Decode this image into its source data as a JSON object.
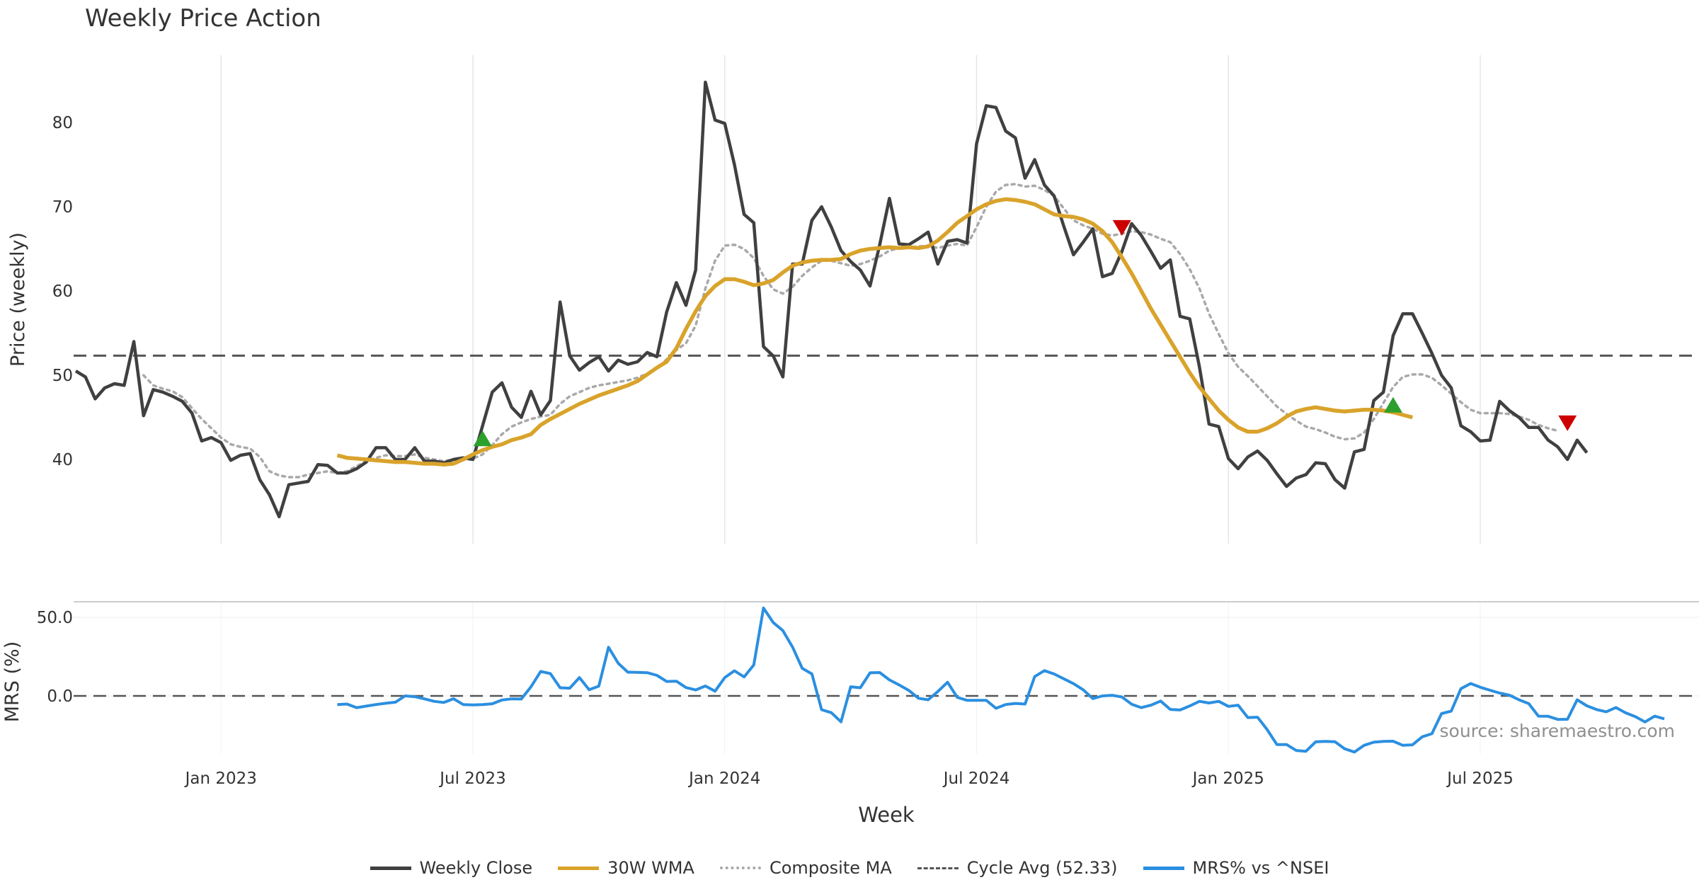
{
  "chart_data": {
    "type": "line",
    "title": "Weekly Price Action",
    "xlabel": "Week",
    "source": "source: sharemaestro.com",
    "x_ticks": [
      "Jan 2023",
      "Jul 2023",
      "Jan 2024",
      "Jul 2024",
      "Jan 2025",
      "Jul 2025"
    ],
    "upper": {
      "ylabel": "Price (weekly)",
      "ylim": [
        30,
        88
      ],
      "y_ticks": [
        "40",
        "50",
        "60",
        "70",
        "80"
      ],
      "cycle_avg": 52.33,
      "weekly_close": [
        50.5,
        49.8,
        47.2,
        48.5,
        49.0,
        48.8,
        54.0,
        45.2,
        48.3,
        48.0,
        47.5,
        46.9,
        45.5,
        42.2,
        42.6,
        42.0,
        39.9,
        40.5,
        40.7,
        37.6,
        35.8,
        33.2,
        37.0,
        37.2,
        37.4,
        39.4,
        39.3,
        38.4,
        38.4,
        38.9,
        39.7,
        41.4,
        41.4,
        40.0,
        40.0,
        41.4,
        39.8,
        39.8,
        39.6,
        40.0,
        40.2,
        40.0,
        44.0,
        48.0,
        49.1,
        46.2,
        45.0,
        48.1,
        45.3,
        47.0,
        58.7,
        52.3,
        50.6,
        51.5,
        52.2,
        50.5,
        51.8,
        51.3,
        51.6,
        52.7,
        52.2,
        57.5,
        61.0,
        58.3,
        62.5,
        84.8,
        80.3,
        79.9,
        75.0,
        69.1,
        68.1,
        53.4,
        52.3,
        49.8,
        63.2,
        63.2,
        68.4,
        70.0,
        67.6,
        64.8,
        63.5,
        62.5,
        60.6,
        65.5,
        71.0,
        65.6,
        65.5,
        66.2,
        67.0,
        63.2,
        65.9,
        66.1,
        65.7,
        77.5,
        82.0,
        81.8,
        79.0,
        78.2,
        73.4,
        75.6,
        72.6,
        71.3,
        67.7,
        64.3,
        65.8,
        67.4,
        61.7,
        62.1,
        64.7,
        68.0,
        66.6,
        64.7,
        62.7,
        63.7,
        57.0,
        56.7,
        51.0,
        44.2,
        43.9,
        40.1,
        38.9,
        40.3,
        41.0,
        39.9,
        38.3,
        36.8,
        37.8,
        38.2,
        39.6,
        39.5,
        37.6,
        36.6,
        40.9,
        41.2,
        47.0,
        48.0,
        54.7,
        57.3,
        57.3,
        55.0,
        52.6,
        50.0,
        48.5,
        44.0,
        43.3,
        42.2,
        42.3,
        46.9,
        45.8,
        45.0,
        43.8,
        43.8,
        42.3,
        41.5,
        40.0,
        42.3,
        40.8
      ],
      "wma_30w": [
        null,
        null,
        null,
        null,
        null,
        null,
        null,
        null,
        null,
        null,
        null,
        null,
        null,
        null,
        null,
        null,
        null,
        null,
        null,
        null,
        null,
        null,
        null,
        null,
        null,
        null,
        null,
        40.5,
        40.2,
        40.1,
        40.0,
        39.9,
        39.8,
        39.7,
        39.7,
        39.6,
        39.5,
        39.5,
        39.4,
        39.5,
        40.0,
        40.6,
        41.1,
        41.5,
        41.8,
        42.3,
        42.6,
        43.0,
        44.1,
        44.8,
        45.4,
        46.0,
        46.6,
        47.1,
        47.6,
        48.0,
        48.4,
        48.8,
        49.3,
        50.1,
        50.9,
        51.6,
        53.2,
        55.5,
        57.6,
        59.4,
        60.6,
        61.4,
        61.4,
        61.1,
        60.7,
        60.9,
        61.3,
        62.2,
        63.0,
        63.4,
        63.6,
        63.7,
        63.7,
        63.8,
        64.4,
        64.8,
        65.0,
        65.1,
        65.2,
        65.1,
        65.2,
        65.1,
        65.3,
        66.0,
        67.0,
        68.1,
        68.9,
        69.7,
        70.3,
        70.7,
        70.9,
        70.8,
        70.6,
        70.3,
        69.7,
        69.1,
        68.9,
        68.8,
        68.5,
        68.0,
        67.1,
        65.8,
        64.0,
        62.1,
        60.0,
        57.9,
        56.0,
        54.1,
        52.2,
        50.3,
        48.6,
        47.2,
        45.8,
        44.7,
        43.8,
        43.3,
        43.3,
        43.7,
        44.3,
        45.1,
        45.7,
        46.0,
        46.2,
        46.0,
        45.8,
        45.7,
        45.8,
        45.9,
        45.9,
        45.8,
        45.6,
        45.3,
        45.0
      ],
      "composite_ma": [
        null,
        null,
        null,
        null,
        null,
        null,
        null,
        50.0,
        48.8,
        48.4,
        48.1,
        47.4,
        46.1,
        44.8,
        43.7,
        42.6,
        41.8,
        41.5,
        41.3,
        40.3,
        38.6,
        38.1,
        37.9,
        37.9,
        38.2,
        38.4,
        38.6,
        38.4,
        38.6,
        39.2,
        39.8,
        40.2,
        40.5,
        40.4,
        40.4,
        40.6,
        40.2,
        40.0,
        39.8,
        40.0,
        40.0,
        40.1,
        40.6,
        41.7,
        43.0,
        43.9,
        44.4,
        44.8,
        45.1,
        45.3,
        46.6,
        47.5,
        48.0,
        48.5,
        48.8,
        49.0,
        49.2,
        49.4,
        49.7,
        50.2,
        50.8,
        51.9,
        53.0,
        53.8,
        55.9,
        60.3,
        63.6,
        65.4,
        65.5,
        65.0,
        63.9,
        61.8,
        60.2,
        59.7,
        60.5,
        61.8,
        62.8,
        63.6,
        63.6,
        63.3,
        63.0,
        63.2,
        63.6,
        64.1,
        64.8,
        65.1,
        65.2,
        65.3,
        65.4,
        65.1,
        65.4,
        65.6,
        65.4,
        67.6,
        70.0,
        71.8,
        72.6,
        72.7,
        72.4,
        72.5,
        72.0,
        71.3,
        69.8,
        68.4,
        67.8,
        67.4,
        66.8,
        66.6,
        66.8,
        67.1,
        67.0,
        66.7,
        66.2,
        65.8,
        64.4,
        62.6,
        60.3,
        57.3,
        54.9,
        52.6,
        51.0,
        49.9,
        48.7,
        47.5,
        46.3,
        45.4,
        44.6,
        43.9,
        43.6,
        43.2,
        42.7,
        42.4,
        42.5,
        43.2,
        44.8,
        46.7,
        48.6,
        49.8,
        50.1,
        50.1,
        49.7,
        48.8,
        47.8,
        46.8,
        45.9,
        45.5,
        45.5,
        45.5,
        45.4,
        45.1,
        44.7,
        44.1,
        43.7,
        43.4
      ]
    },
    "lower": {
      "ylabel": "MRS (%)",
      "ylim": [
        -37,
        60
      ],
      "y_ticks": [
        "50.0",
        "0.0"
      ],
      "mrs": [
        null,
        null,
        null,
        null,
        null,
        null,
        null,
        null,
        null,
        null,
        null,
        null,
        null,
        null,
        null,
        null,
        null,
        null,
        null,
        null,
        null,
        null,
        null,
        null,
        null,
        null,
        null,
        -5.5,
        -5.2,
        -7.5,
        -6.5,
        -5.5,
        -4.7,
        -4.0,
        0.0,
        -0.5,
        -1.9,
        -3.5,
        -4.2,
        -1.8,
        -5.5,
        -5.8,
        -5.5,
        -5.0,
        -2.6,
        -1.9,
        -2.0,
        5.8,
        15.6,
        14.2,
        5.2,
        4.9,
        11.7,
        3.9,
        6.2,
        31.0,
        20.8,
        15.1,
        15.0,
        14.8,
        13.1,
        9.2,
        9.4,
        5.3,
        3.8,
        6.3,
        3.0,
        11.7,
        16.0,
        12.1,
        19.7,
        56.0,
        46.8,
        41.6,
        31.1,
        17.6,
        14.0,
        -8.8,
        -10.7,
        -16.5,
        5.8,
        5.2,
        14.7,
        14.9,
        10.2,
        7.0,
        3.5,
        -1.5,
        -2.5,
        2.8,
        8.7,
        -0.9,
        -2.8,
        -2.8,
        -2.8,
        -7.9,
        -5.5,
        -4.8,
        -5.2,
        12.3,
        16.1,
        14.0,
        10.9,
        7.8,
        3.9,
        -1.7,
        0.0,
        0.4,
        -0.7,
        -5.3,
        -7.5,
        -5.9,
        -3.3,
        -8.6,
        -9.0,
        -6.4,
        -3.5,
        -4.5,
        -3.5,
        -6.7,
        -5.9,
        -13.8,
        -13.6,
        -21.5,
        -31.0,
        -31.0,
        -34.8,
        -35.3,
        -29.3,
        -29.0,
        -29.2,
        -33.7,
        -35.8,
        -31.5,
        -29.5,
        -29.0,
        -28.9,
        -31.5,
        -31.2,
        -26.1,
        -24.1,
        -11.3,
        -9.7,
        4.6,
        7.9,
        5.5,
        3.6,
        1.8,
        0.5,
        -2.5,
        -4.9,
        -12.9,
        -13.0,
        -15.0,
        -14.9,
        -2.5,
        -6.3,
        -8.7,
        -10.1,
        -7.4,
        -10.8,
        -13.2,
        -16.6,
        -12.9,
        -14.6
      ]
    },
    "signals": [
      {
        "type": "buy",
        "week": 42,
        "value": 42.5,
        "color": "#2ca02c"
      },
      {
        "type": "sell",
        "week": 108,
        "value": 67.5,
        "color": "#cc0000"
      },
      {
        "type": "buy",
        "week": 136,
        "value": 46.5,
        "color": "#2ca02c"
      },
      {
        "type": "sell",
        "week": 154,
        "value": 44.3,
        "color": "#cc0000"
      }
    ],
    "legend": [
      {
        "label": "Weekly Close",
        "color": "#404040",
        "style": "solid"
      },
      {
        "label": "30W WMA",
        "color": "#d9a32b",
        "style": "solid"
      },
      {
        "label": "Composite MA",
        "color": "#a9a9a9",
        "style": "dotted"
      },
      {
        "label": "Cycle Avg (52.33)",
        "color": "#555555",
        "style": "dashed"
      },
      {
        "label": "MRS% vs ^NSEI",
        "color": "#2b8fe0",
        "style": "solid"
      }
    ]
  }
}
